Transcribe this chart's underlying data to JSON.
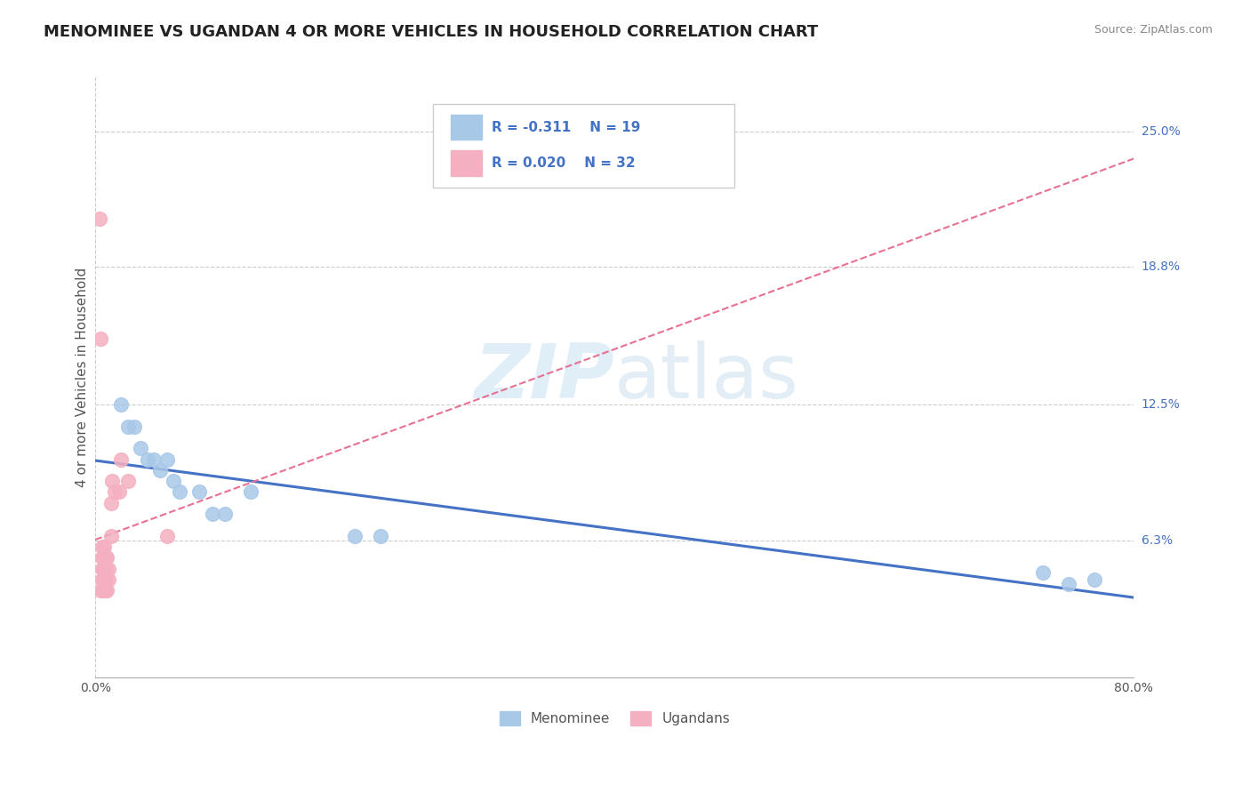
{
  "title": "MENOMINEE VS UGANDAN 4 OR MORE VEHICLES IN HOUSEHOLD CORRELATION CHART",
  "source": "Source: ZipAtlas.com",
  "ylabel": "4 or more Vehicles in Household",
  "xlim": [
    0.0,
    0.8
  ],
  "ylim": [
    0.0,
    0.275
  ],
  "ytick_positions": [
    0.063,
    0.125,
    0.188,
    0.25
  ],
  "ytick_labels": [
    "6.3%",
    "12.5%",
    "18.8%",
    "25.0%"
  ],
  "blue_color": "#a8c8e8",
  "pink_color": "#f4b0c0",
  "blue_line_color": "#4472c4",
  "pink_line_color": "#e87090",
  "grid_color": "#cccccc",
  "background_color": "#ffffff",
  "title_fontsize": 13,
  "axis_label_fontsize": 11,
  "tick_fontsize": 10,
  "menominee_x": [
    0.02,
    0.025,
    0.03,
    0.035,
    0.04,
    0.045,
    0.05,
    0.055,
    0.06,
    0.065,
    0.08,
    0.09,
    0.1,
    0.12,
    0.2,
    0.22,
    0.73,
    0.75,
    0.77
  ],
  "menominee_y": [
    0.125,
    0.115,
    0.115,
    0.105,
    0.1,
    0.1,
    0.095,
    0.1,
    0.09,
    0.085,
    0.085,
    0.075,
    0.075,
    0.085,
    0.065,
    0.065,
    0.048,
    0.043,
    0.045
  ],
  "ugandan_x": [
    0.003,
    0.004,
    0.004,
    0.005,
    0.005,
    0.005,
    0.005,
    0.006,
    0.006,
    0.006,
    0.006,
    0.007,
    0.007,
    0.007,
    0.007,
    0.007,
    0.008,
    0.008,
    0.008,
    0.008,
    0.009,
    0.009,
    0.01,
    0.01,
    0.012,
    0.012,
    0.013,
    0.015,
    0.018,
    0.02,
    0.025,
    0.055
  ],
  "ugandan_y": [
    0.21,
    0.155,
    0.04,
    0.045,
    0.05,
    0.055,
    0.06,
    0.04,
    0.045,
    0.05,
    0.055,
    0.04,
    0.045,
    0.05,
    0.055,
    0.06,
    0.04,
    0.045,
    0.05,
    0.055,
    0.04,
    0.055,
    0.045,
    0.05,
    0.065,
    0.08,
    0.09,
    0.085,
    0.085,
    0.1,
    0.09,
    0.065
  ]
}
